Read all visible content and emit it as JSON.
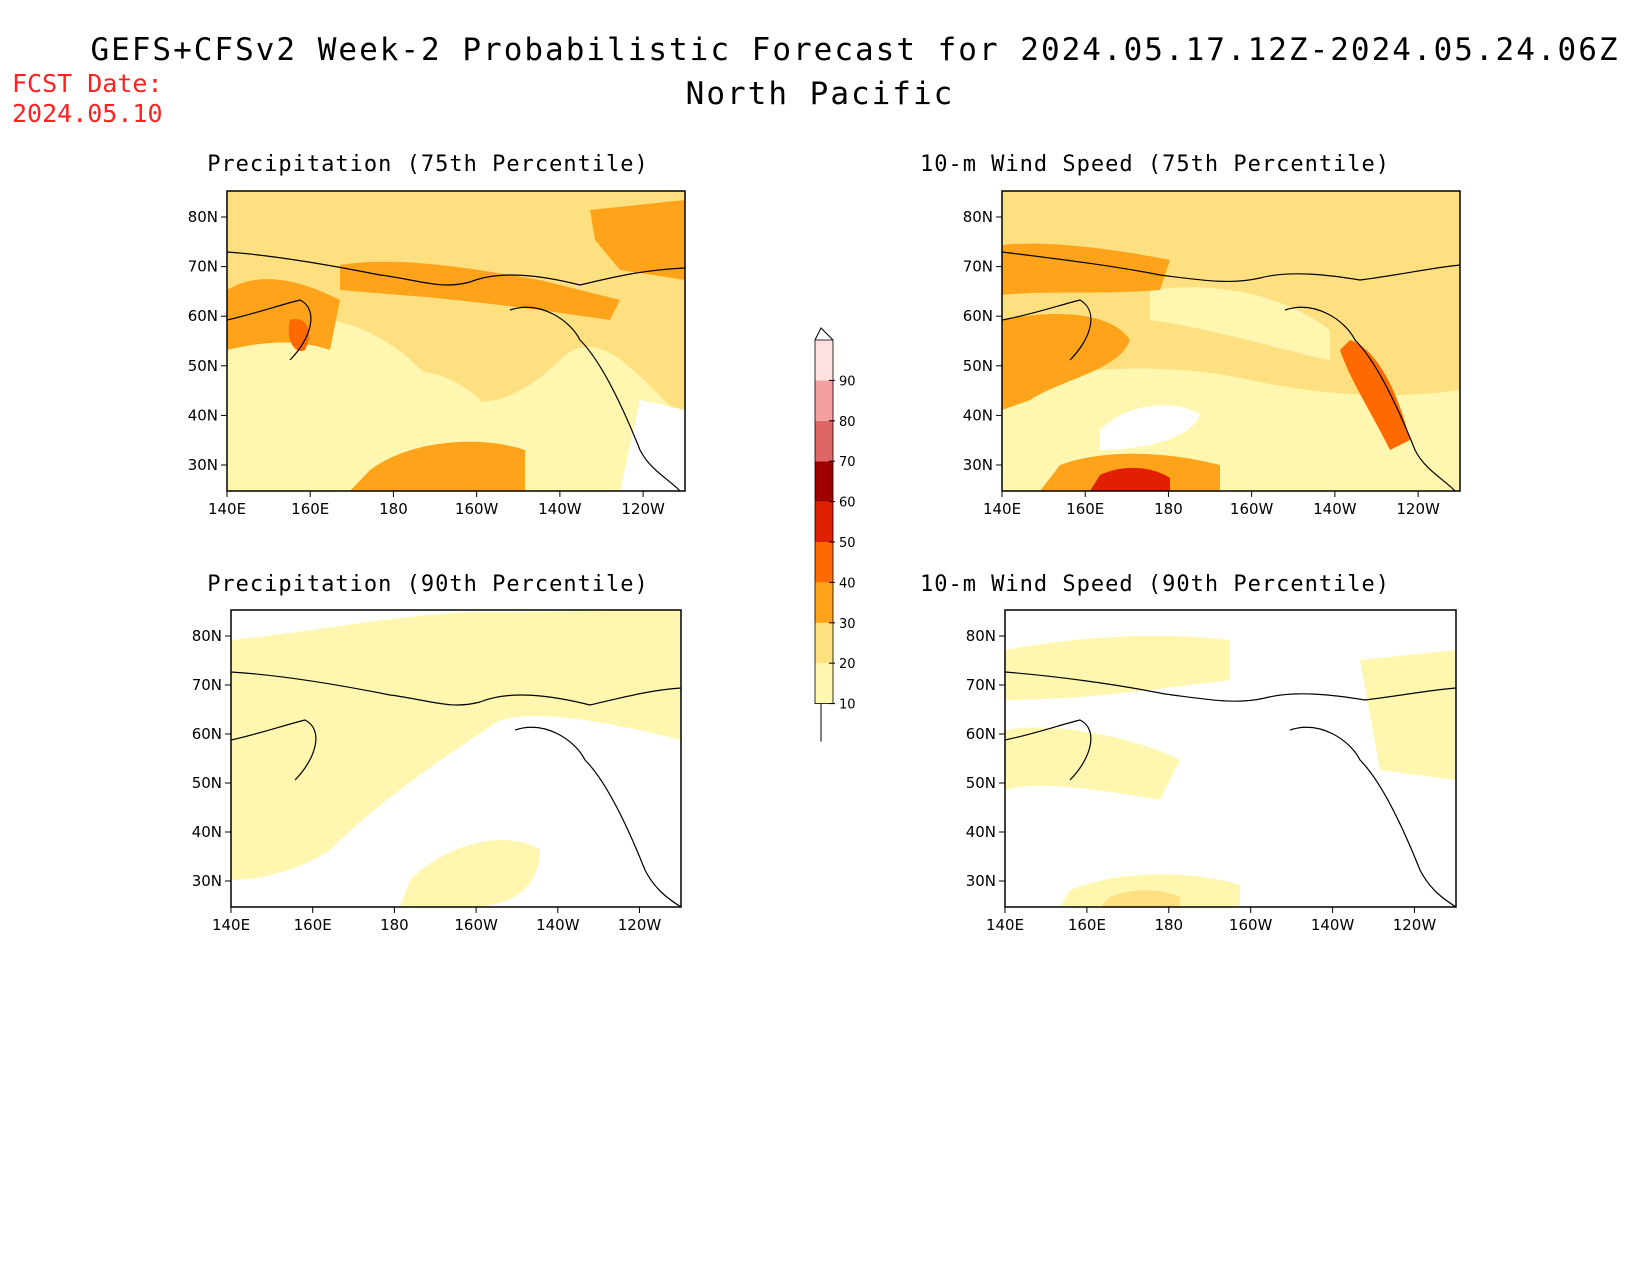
{
  "header": {
    "title_line1": "GEFS+CFSv2 Week-2 Probabilistic Forecast for 2024.05.17.12Z-2024.05.24.06Z",
    "title_line2": "North Pacific",
    "fcst_label": "FCST Date:",
    "fcst_date": "2024.05.10"
  },
  "panels": [
    {
      "title": "Precipitation (75th Percentile)"
    },
    {
      "title": "10-m Wind Speed (75th Percentile)"
    },
    {
      "title": "Precipitation (90th Percentile)"
    },
    {
      "title": "10-m Wind Speed (90th Percentile)"
    }
  ],
  "axes": {
    "lat_labels": [
      "80N",
      "70N",
      "60N",
      "50N",
      "40N",
      "30N"
    ],
    "lon_labels": [
      "140E",
      "160E",
      "180",
      "160W",
      "140W",
      "120W"
    ]
  },
  "colorbar": {
    "levels": [
      "10",
      "20",
      "30",
      "40",
      "50",
      "60",
      "70",
      "80",
      "90"
    ],
    "colors": [
      "#fff7b0",
      "#ffe080",
      "#ffa31a",
      "#ff6a00",
      "#e02000",
      "#a00000",
      "#e06666",
      "#f5a0a0",
      "#ffe0e0"
    ]
  }
}
